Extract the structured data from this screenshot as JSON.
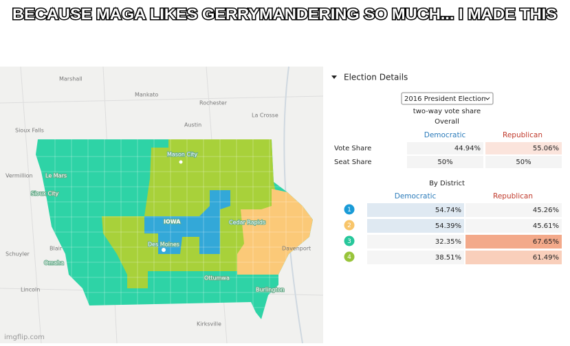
{
  "caption": "BECAUSE MAGA LIKES GERRYMANDERING SO MUCH... I MADE THIS",
  "map": {
    "labels": [
      "Marshall",
      "Mankato",
      "Rochester",
      "La Crosse",
      "Austin",
      "Sioux Falls",
      "Mason City",
      "Le Mars",
      "Vermillion",
      "Sioux City",
      "Cedar Rapids",
      "Des Moines",
      "Davenport",
      "Blair",
      "Omaha",
      "Schuyler",
      "Ottumwa",
      "Burlington",
      "Lincoln",
      "Kirksville"
    ],
    "state_label": "IOWA"
  },
  "panel": {
    "title": "Election Details",
    "dropdown": "2016 President Election",
    "subtitle": "two-way vote share",
    "overall": {
      "heading": "Overall",
      "columns": [
        "Democratic",
        "Republican"
      ],
      "rows": [
        {
          "label": "Vote Share",
          "values": [
            "44.94%",
            "55.06%"
          ]
        },
        {
          "label": "Seat Share",
          "values": [
            "50%",
            "50%"
          ]
        }
      ]
    },
    "by_district": {
      "heading": "By District",
      "columns": [
        "Democratic",
        "Republican"
      ],
      "rows": [
        {
          "district": "1",
          "values": [
            "54.74%",
            "45.26%"
          ]
        },
        {
          "district": "2",
          "values": [
            "54.39%",
            "45.61%"
          ]
        },
        {
          "district": "3",
          "values": [
            "32.35%",
            "67.65%"
          ]
        },
        {
          "district": "4",
          "values": [
            "38.51%",
            "61.49%"
          ]
        }
      ]
    }
  },
  "watermark": "imgflip.com"
}
